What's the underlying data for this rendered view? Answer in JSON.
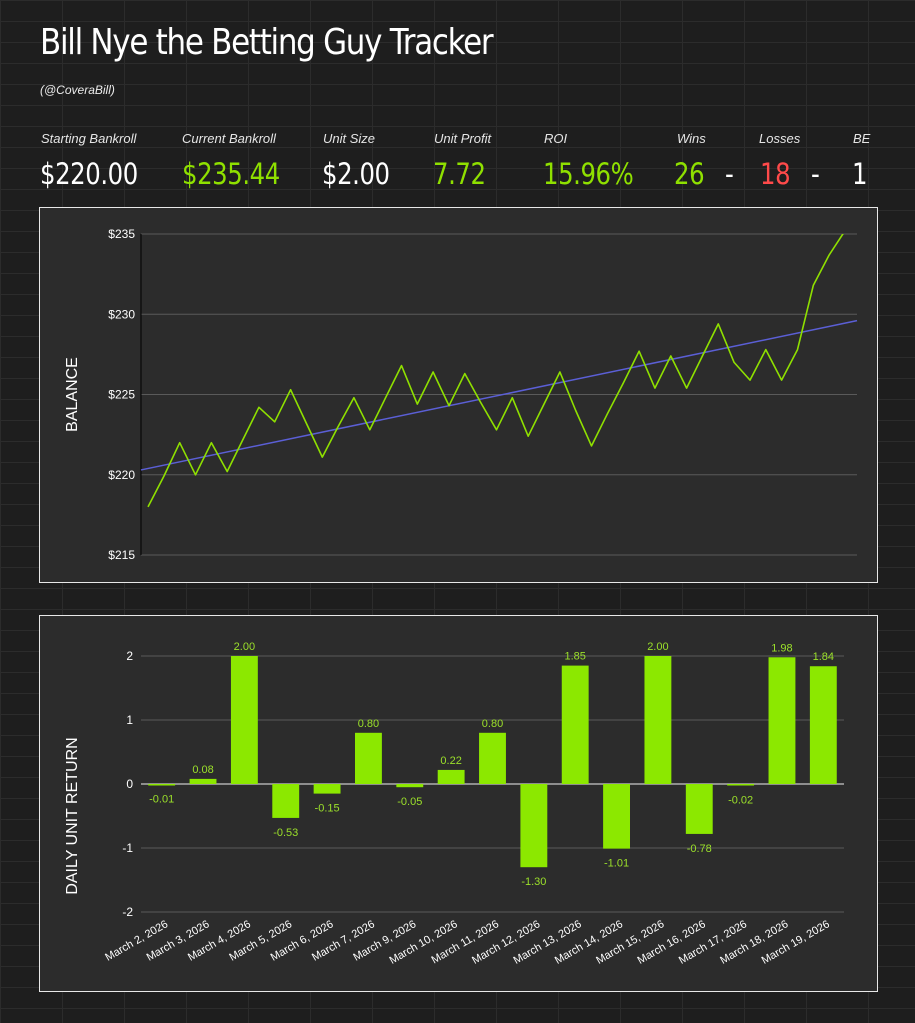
{
  "header": {
    "title": "Bill Nye the Betting Guy Tracker",
    "handle": "(@CoveraBill)"
  },
  "stats": {
    "starting_bankroll": {
      "label": "Starting Bankroll",
      "value": "$220.00"
    },
    "current_bankroll": {
      "label": "Current Bankroll",
      "value": "$235.44"
    },
    "unit_size": {
      "label": "Unit Size",
      "value": "$2.00"
    },
    "unit_profit": {
      "label": "Unit Profit",
      "value": "7.72"
    },
    "roi": {
      "label": "ROI",
      "value": "15.96%"
    },
    "wins": {
      "label": "Wins",
      "value": "26"
    },
    "losses": {
      "label": "Losses",
      "value": "18"
    },
    "be": {
      "label": "BE",
      "value": "1"
    },
    "separator": "-"
  },
  "colors": {
    "accent": "#8fe000",
    "loss": "#ff4a4a",
    "trend": "#5b5fd6",
    "panel": "#2c2c2c"
  },
  "chart_data": [
    {
      "type": "line",
      "title": "",
      "xlabel": "",
      "ylabel": "BALANCE",
      "ylim": [
        215,
        235
      ],
      "yticks": [
        215,
        220,
        225,
        230,
        235
      ],
      "ytick_labels": [
        "$215",
        "$220",
        "$225",
        "$230",
        "$235"
      ],
      "grid": true,
      "series": [
        {
          "name": "Balance",
          "values": [
            218.0,
            219.9,
            222.0,
            220.0,
            222.0,
            220.2,
            222.2,
            224.2,
            223.3,
            225.3,
            223.2,
            221.1,
            223.0,
            224.8,
            222.8,
            224.8,
            226.8,
            224.4,
            226.4,
            224.3,
            226.3,
            224.5,
            222.8,
            224.8,
            222.4,
            224.4,
            226.4,
            224.0,
            221.8,
            223.8,
            225.7,
            227.7,
            225.4,
            227.4,
            225.4,
            227.4,
            229.4,
            227.0,
            225.9,
            227.8,
            225.9,
            227.8,
            231.8,
            233.7,
            235.2
          ]
        },
        {
          "name": "Trend",
          "start": 220.3,
          "end": 229.6
        }
      ]
    },
    {
      "type": "bar",
      "title": "",
      "xlabel": "",
      "ylabel": "DAILY UNIT RETURN",
      "ylim": [
        -2,
        2
      ],
      "yticks": [
        -2,
        -1,
        0,
        1,
        2
      ],
      "ytick_labels": [
        "-2",
        "-1",
        "0",
        "1",
        "2"
      ],
      "grid": true,
      "categories": [
        "March 2, 2026",
        "March 3, 2026",
        "March 4, 2026",
        "March 5, 2026",
        "March 6, 2026",
        "March 7, 2026",
        "March 9, 2026",
        "March 10, 2026",
        "March 11, 2026",
        "March 12, 2026",
        "March 13, 2026",
        "March 14, 2026",
        "March 15, 2026",
        "March 16, 2026",
        "March 17, 2026",
        "March 18, 2026",
        "March 19, 2026"
      ],
      "values": [
        -0.01,
        0.08,
        2.0,
        -0.53,
        -0.15,
        0.8,
        -0.05,
        0.22,
        0.8,
        -1.3,
        1.85,
        -1.01,
        2.0,
        -0.78,
        -0.02,
        1.98,
        1.84
      ],
      "labels": [
        "-0.01",
        "0.08",
        "2.00",
        "-0.53",
        "-0.15",
        "0.80",
        "-0.05",
        "0.22",
        "0.80",
        "-1.30",
        "1.85",
        "-1.01",
        "2.00",
        "-0.78",
        "-0.02",
        "1.98",
        "1.84"
      ]
    }
  ]
}
